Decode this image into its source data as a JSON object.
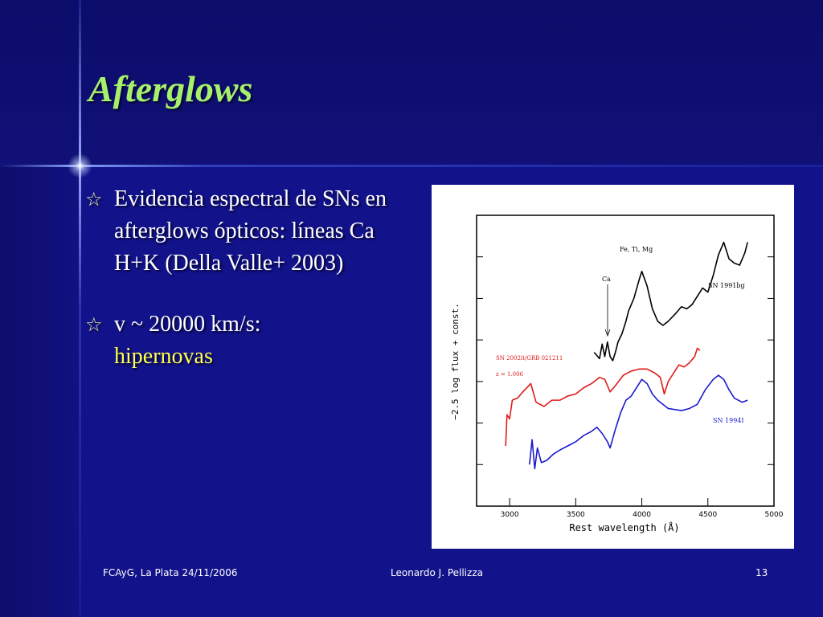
{
  "slide": {
    "title": "Afterglows",
    "bullets": [
      {
        "icon": "star-outline-icon",
        "text": "Evidencia espectral de SNs en afterglows ópticos: líneas Ca H+K (Della Valle+ 2003)"
      },
      {
        "icon": "star-outline-icon",
        "text": "v ~ 20000 km/s:",
        "highlight": "hipernovas"
      }
    ],
    "colors": {
      "background": "#12128a",
      "title": "#a6f06c",
      "highlight": "#ffff50",
      "text": "#ffffff"
    }
  },
  "footer": {
    "left": "FCAyG, La Plata 24/11/2006",
    "center": "Leonardo J. Pellizza",
    "page": "13"
  },
  "chart_data": {
    "type": "line",
    "xlabel": "Rest wavelength (Å)",
    "ylabel": "−2.5 log flux + const.",
    "xlim": [
      2750,
      5000
    ],
    "xticks": [
      3000,
      3500,
      4000,
      4500,
      5000
    ],
    "annotations": [
      "Fe, Ti, Mg",
      "Ca",
      "SN 2002lt/GRB 021211",
      "z = 1.006"
    ],
    "series": [
      {
        "name": "SN 1991bg",
        "color": "#000000",
        "x": [
          3640,
          3680,
          3700,
          3720,
          3740,
          3760,
          3780,
          3800,
          3820,
          3850,
          3880,
          3900,
          3940,
          3980,
          4000,
          4040,
          4080,
          4120,
          4160,
          4200,
          4260,
          4300,
          4340,
          4380,
          4420,
          4460,
          4500,
          4540,
          4580,
          4620,
          4660,
          4700,
          4740,
          4780,
          4800
        ],
        "y": [
          3.7,
          3.55,
          3.9,
          3.6,
          3.95,
          3.6,
          3.5,
          3.7,
          3.95,
          4.15,
          4.45,
          4.7,
          5.0,
          5.45,
          5.65,
          5.3,
          4.75,
          4.45,
          4.35,
          4.45,
          4.65,
          4.8,
          4.75,
          4.85,
          5.05,
          5.25,
          5.15,
          5.55,
          6.05,
          6.35,
          5.95,
          5.85,
          5.8,
          6.1,
          6.35
        ]
      },
      {
        "name": "SN 2002lt/GRB 021211",
        "color": "#e01b1b",
        "x": [
          2970,
          2980,
          3000,
          3020,
          3060,
          3100,
          3160,
          3200,
          3260,
          3320,
          3380,
          3440,
          3500,
          3560,
          3620,
          3680,
          3720,
          3760,
          3800,
          3860,
          3920,
          3980,
          4040,
          4100,
          4140,
          4170,
          4200,
          4240,
          4280,
          4320,
          4360,
          4400,
          4420,
          4440
        ],
        "y": [
          1.45,
          2.2,
          2.1,
          2.55,
          2.6,
          2.75,
          2.95,
          2.5,
          2.4,
          2.55,
          2.55,
          2.65,
          2.7,
          2.85,
          2.95,
          3.1,
          3.05,
          2.75,
          2.9,
          3.15,
          3.25,
          3.3,
          3.3,
          3.2,
          3.1,
          2.7,
          3.0,
          3.2,
          3.4,
          3.35,
          3.45,
          3.6,
          3.8,
          3.75
        ]
      },
      {
        "name": "SN 1994I",
        "color": "#1a1ad0",
        "x": [
          3150,
          3170,
          3190,
          3210,
          3240,
          3280,
          3330,
          3380,
          3440,
          3500,
          3560,
          3620,
          3660,
          3700,
          3740,
          3760,
          3800,
          3840,
          3880,
          3920,
          3960,
          4000,
          4040,
          4080,
          4120,
          4200,
          4300,
          4360,
          4420,
          4480,
          4540,
          4580,
          4620,
          4660,
          4700,
          4760,
          4800
        ],
        "y": [
          1.0,
          1.6,
          0.9,
          1.4,
          1.05,
          1.1,
          1.25,
          1.35,
          1.45,
          1.55,
          1.7,
          1.8,
          1.9,
          1.75,
          1.55,
          1.4,
          1.85,
          2.25,
          2.55,
          2.65,
          2.85,
          3.05,
          2.95,
          2.7,
          2.55,
          2.35,
          2.3,
          2.35,
          2.45,
          2.8,
          3.05,
          3.15,
          3.05,
          2.8,
          2.6,
          2.5,
          2.55
        ]
      }
    ]
  }
}
